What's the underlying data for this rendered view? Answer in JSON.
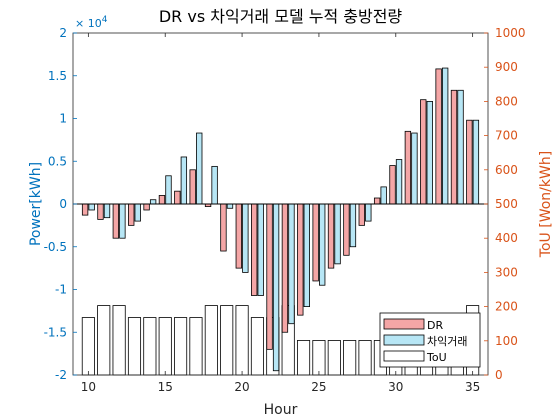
{
  "chart_data": {
    "type": "bar",
    "title": "DR vs 차익거래 모델 누적 충방전량",
    "xlabel": "Hour",
    "ylabel_left": "Power[kWh]",
    "ylabel_right": "ToU [Won/kWh]",
    "y_left_exponent": "× 10^4",
    "y_left_exponent_base": "× 10",
    "y_left_exponent_power": "4",
    "x_range": [
      9,
      36
    ],
    "x_ticks": [
      "10",
      "15",
      "20",
      "25",
      "30",
      "35"
    ],
    "y_left_range": [
      -2,
      2
    ],
    "y_left_ticks": [
      "-2",
      "-1.5",
      "-1",
      "-0.5",
      "0",
      "0.5",
      "1",
      "1.5",
      "2"
    ],
    "y_right_range": [
      0,
      1000
    ],
    "y_right_ticks": [
      "0",
      "100",
      "200",
      "300",
      "400",
      "500",
      "600",
      "700",
      "800",
      "900",
      "1000"
    ],
    "hours": [
      10,
      11,
      12,
      13,
      14,
      15,
      16,
      17,
      18,
      19,
      20,
      21,
      22,
      23,
      24,
      25,
      26,
      27,
      28,
      29,
      30,
      31,
      32,
      33,
      34,
      35
    ],
    "series": [
      {
        "name": "DR",
        "axis": "left",
        "color": "#F4A6A6",
        "values": [
          -0.13,
          -0.18,
          -0.4,
          -0.25,
          -0.07,
          0.1,
          0.15,
          0.4,
          -0.03,
          -0.55,
          -0.75,
          -1.07,
          -1.7,
          -1.5,
          -1.3,
          -0.9,
          -0.75,
          -0.6,
          -0.25,
          0.07,
          0.45,
          0.85,
          1.22,
          1.58,
          1.33,
          0.98
        ]
      },
      {
        "name": "차익거래",
        "axis": "left",
        "color": "#B7E6F5",
        "values": [
          -0.07,
          -0.16,
          -0.4,
          -0.2,
          0.05,
          0.33,
          0.55,
          0.83,
          0.44,
          -0.05,
          -0.8,
          -1.07,
          -1.95,
          -1.4,
          -1.2,
          -0.95,
          -0.7,
          -0.5,
          -0.2,
          0.2,
          0.52,
          0.83,
          1.2,
          1.59,
          1.33,
          0.98
        ]
      },
      {
        "name": "ToU",
        "axis": "right",
        "color": "#FFFFFF",
        "values": [
          168,
          203,
          203,
          168,
          168,
          168,
          168,
          168,
          203,
          203,
          203,
          168,
          168,
          203,
          101,
          101,
          101,
          101,
          101,
          101,
          101,
          101,
          101,
          101,
          101,
          203
        ]
      }
    ],
    "legend": [
      "DR",
      "차익거래",
      "ToU"
    ],
    "legend_position": "bottom-right",
    "grid": false
  }
}
